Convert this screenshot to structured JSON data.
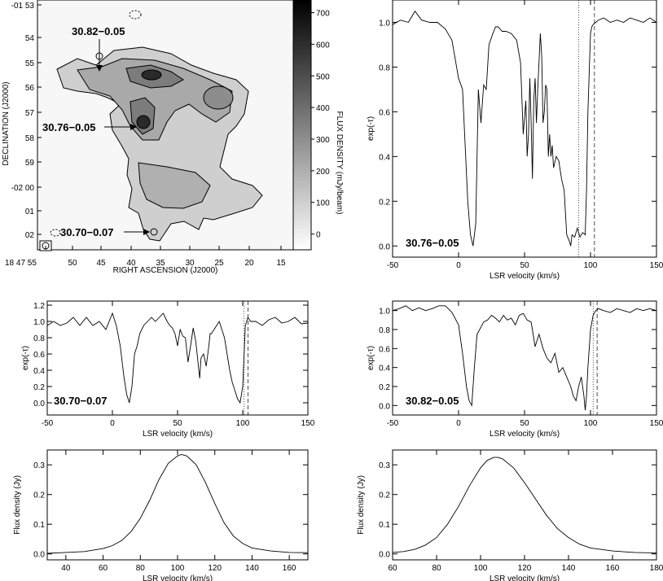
{
  "colors": {
    "axis": "#000000",
    "line": "#000000",
    "background": "#ffffff"
  },
  "chart_data": [
    {
      "id": "map",
      "type": "heatmap",
      "title": "",
      "xlabel": "RIGHT ASCENSION (J2000)",
      "ylabel": "DECLINATION (J2000)",
      "colorbar_label": "FLUX DENSITY (mJy/beam)",
      "x_ticks": [
        "18 47 55",
        "50",
        "45",
        "40",
        "35",
        "30",
        "25",
        "20",
        "15"
      ],
      "y_ticks": [
        "-01 53",
        "54",
        "55",
        "56",
        "57",
        "58",
        "59",
        "-02 00",
        "01",
        "02"
      ],
      "colorbar_ticks": [
        0,
        100,
        200,
        300,
        400,
        500,
        600,
        700
      ],
      "colorbar_range": [
        -50,
        740
      ],
      "annotations": [
        "30.82−0.05",
        "30.76−0.05",
        "30.70−0.07"
      ]
    },
    {
      "id": "spec_3076",
      "type": "line",
      "annotation": "30.76−0.05",
      "xlabel": "LSR velocity (km/s)",
      "ylabel": "exp(-τ)",
      "xlim": [
        -50,
        150
      ],
      "ylim": [
        -0.05,
        1.1
      ],
      "x_ticks": [
        -50,
        0,
        50,
        100,
        150
      ],
      "y_ticks": [
        "0.0",
        "0.2",
        "0.4",
        "0.6",
        "0.8",
        "1.0"
      ],
      "vlines": [
        {
          "x": 91,
          "style": "dotted"
        },
        {
          "x": 103,
          "style": "dashed"
        }
      ],
      "x": [
        -50,
        -44,
        -38,
        -33,
        -28,
        -22,
        -16,
        -10,
        -5,
        0,
        3,
        5,
        7,
        9,
        11,
        13,
        15,
        17,
        19,
        21,
        23,
        26,
        28,
        30,
        33,
        36,
        40,
        44,
        47,
        49,
        51,
        52,
        53,
        54,
        55,
        56,
        57,
        58,
        59,
        60,
        62,
        63,
        64,
        65,
        66,
        67,
        68,
        69,
        70,
        71,
        72,
        74,
        76,
        78,
        80,
        82,
        84,
        85,
        86,
        88,
        90,
        92,
        94,
        96,
        97,
        98,
        100,
        101,
        102,
        104,
        106,
        110,
        115,
        120,
        125,
        130,
        135,
        140,
        145,
        150
      ],
      "y": [
        0.99,
        1.01,
        1.0,
        1.05,
        1.01,
        1.0,
        1.0,
        0.97,
        0.92,
        0.75,
        0.7,
        0.45,
        0.2,
        0.05,
        0.0,
        0.1,
        0.7,
        0.55,
        0.72,
        0.7,
        0.9,
        0.95,
        0.98,
        0.98,
        0.96,
        0.96,
        0.95,
        0.92,
        0.82,
        0.5,
        0.65,
        0.4,
        0.5,
        0.75,
        0.55,
        0.3,
        0.65,
        0.75,
        0.55,
        0.7,
        0.95,
        0.85,
        0.55,
        0.6,
        0.72,
        0.7,
        0.4,
        0.5,
        0.4,
        0.45,
        0.35,
        0.4,
        0.38,
        0.3,
        0.25,
        0.05,
        0.02,
        0.0,
        0.05,
        0.04,
        0.08,
        0.04,
        0.06,
        0.05,
        0.25,
        0.6,
        0.95,
        0.98,
        0.99,
        1.0,
        1.01,
        1.02,
        1.0,
        1.01,
        1.0,
        1.02,
        1.01,
        1.0,
        1.02,
        1.0
      ]
    },
    {
      "id": "spec_3070",
      "type": "line",
      "annotation": "30.70−0.07",
      "xlabel": "LSR velocity (km/s)",
      "ylabel": "exp(-τ)",
      "xlim": [
        -50,
        150
      ],
      "ylim": [
        -0.15,
        1.25
      ],
      "x_ticks": [
        -50,
        0,
        50,
        100,
        150
      ],
      "y_ticks": [
        "0.0",
        "0.2",
        "0.4",
        "0.6",
        "0.8",
        "1.0",
        "1.2"
      ],
      "vlines": [
        {
          "x": 101,
          "style": "dotted"
        },
        {
          "x": 104,
          "style": "dashed"
        }
      ],
      "x": [
        -50,
        -45,
        -40,
        -35,
        -30,
        -25,
        -20,
        -15,
        -10,
        -5,
        0,
        3,
        6,
        9,
        11,
        13,
        15,
        17,
        19,
        21,
        24,
        27,
        30,
        33,
        36,
        39,
        42,
        44,
        46,
        48,
        50,
        52,
        54,
        56,
        58,
        60,
        62,
        64,
        66,
        67,
        68,
        70,
        72,
        74,
        75,
        76,
        78,
        80,
        82,
        84,
        86,
        88,
        90,
        92,
        94,
        96,
        98,
        100,
        102,
        104,
        106,
        110,
        115,
        120,
        125,
        130,
        135,
        140,
        145,
        150
      ],
      "y": [
        0.95,
        1.0,
        0.95,
        0.98,
        1.05,
        0.95,
        1.05,
        0.95,
        1.0,
        0.9,
        1.1,
        0.95,
        0.7,
        0.3,
        0.1,
        0.0,
        0.2,
        0.6,
        0.7,
        0.85,
        0.95,
        1.0,
        1.05,
        1.0,
        1.05,
        1.1,
        1.0,
        0.95,
        0.92,
        0.85,
        0.7,
        0.9,
        0.82,
        0.8,
        0.5,
        0.7,
        0.92,
        0.75,
        0.45,
        0.3,
        0.55,
        0.6,
        0.45,
        0.7,
        0.85,
        0.85,
        0.9,
        0.95,
        1.0,
        0.9,
        0.8,
        0.6,
        0.4,
        0.25,
        0.15,
        0.05,
        0.0,
        0.2,
        0.95,
        1.05,
        1.0,
        1.0,
        0.95,
        1.02,
        1.05,
        0.98,
        1.0,
        1.05,
        0.97,
        0.98
      ]
    },
    {
      "id": "spec_3082",
      "type": "line",
      "annotation": "30.82−0.05",
      "xlabel": "LSR velocity (km/s)",
      "ylabel": "exp(-τ)",
      "xlim": [
        -50,
        150
      ],
      "ylim": [
        -0.1,
        1.1
      ],
      "x_ticks": [
        -50,
        0,
        50,
        100,
        150
      ],
      "y_ticks": [
        "0.0",
        "0.2",
        "0.4",
        "0.6",
        "0.8",
        "1.0"
      ],
      "vlines": [
        {
          "x": 102,
          "style": "dotted"
        },
        {
          "x": 105,
          "style": "dashed"
        }
      ],
      "x": [
        -50,
        -45,
        -40,
        -35,
        -30,
        -25,
        -20,
        -15,
        -10,
        -5,
        0,
        3,
        6,
        8,
        10,
        12,
        14,
        16,
        19,
        22,
        25,
        28,
        31,
        34,
        37,
        40,
        43,
        46,
        49,
        52,
        55,
        58,
        61,
        64,
        67,
        70,
        73,
        76,
        79,
        82,
        85,
        87,
        89,
        91,
        93,
        95,
        96,
        97,
        98,
        100,
        102,
        104,
        106,
        110,
        115,
        120,
        125,
        130,
        135,
        140,
        145,
        150
      ],
      "y": [
        1.0,
        1.02,
        1.05,
        1.0,
        1.03,
        1.0,
        1.02,
        1.05,
        1.05,
        0.98,
        0.85,
        0.55,
        0.2,
        0.05,
        0.0,
        0.4,
        0.75,
        0.8,
        0.88,
        0.9,
        0.95,
        0.92,
        0.88,
        0.95,
        0.9,
        0.92,
        0.85,
        0.95,
        0.97,
        0.9,
        0.88,
        0.62,
        0.75,
        0.6,
        0.5,
        0.45,
        0.55,
        0.35,
        0.4,
        0.3,
        0.2,
        0.1,
        0.05,
        0.2,
        0.3,
        0.1,
        -0.05,
        0.1,
        0.4,
        0.8,
        0.95,
        1.0,
        1.02,
        1.0,
        0.98,
        1.02,
        1.0,
        0.98,
        1.02,
        1.0,
        1.02,
        1.0
      ]
    },
    {
      "id": "rrl_1",
      "type": "line",
      "xlabel": "LSR velocity (km/s)",
      "ylabel": "Flux density (Jy)",
      "xlim": [
        30,
        170
      ],
      "ylim": [
        -0.02,
        0.35
      ],
      "x_ticks": [
        40,
        60,
        80,
        100,
        120,
        140,
        160
      ],
      "y_ticks": [
        "0.0",
        "0.1",
        "0.2",
        "0.3"
      ],
      "x": [
        30,
        40,
        50,
        60,
        65,
        70,
        75,
        80,
        85,
        90,
        95,
        100,
        102,
        105,
        110,
        115,
        120,
        125,
        130,
        135,
        140,
        150,
        160,
        170
      ],
      "y": [
        0.002,
        0.005,
        0.008,
        0.018,
        0.028,
        0.045,
        0.075,
        0.12,
        0.18,
        0.25,
        0.305,
        0.33,
        0.335,
        0.33,
        0.3,
        0.24,
        0.17,
        0.105,
        0.06,
        0.035,
        0.02,
        0.01,
        0.005,
        0.004
      ]
    },
    {
      "id": "rrl_2",
      "type": "line",
      "xlabel": "LSR velocity (km/s)",
      "ylabel": "Flux density (Jy)",
      "xlim": [
        60,
        180
      ],
      "ylim": [
        -0.02,
        0.35
      ],
      "x_ticks": [
        60,
        80,
        100,
        120,
        140,
        160,
        180
      ],
      "y_ticks": [
        "0.0",
        "0.1",
        "0.2",
        "0.3"
      ],
      "x": [
        60,
        65,
        70,
        75,
        80,
        85,
        90,
        95,
        100,
        103,
        106,
        108,
        110,
        115,
        120,
        125,
        130,
        135,
        140,
        145,
        150,
        160,
        170,
        180
      ],
      "y": [
        0.005,
        0.008,
        0.015,
        0.03,
        0.055,
        0.1,
        0.16,
        0.23,
        0.29,
        0.315,
        0.325,
        0.325,
        0.32,
        0.29,
        0.24,
        0.185,
        0.13,
        0.085,
        0.055,
        0.033,
        0.02,
        0.01,
        0.005,
        0.003
      ]
    }
  ]
}
